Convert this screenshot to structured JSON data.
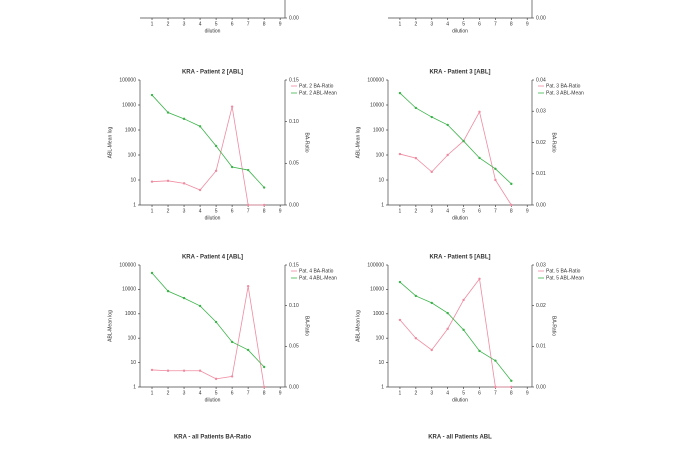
{
  "chart_data": [
    {
      "type": "line",
      "xlabel": "dilution",
      "xticks": [
        1,
        2,
        3,
        4,
        5,
        6,
        7,
        8,
        9
      ],
      "xlim": [
        0.25,
        9.3
      ],
      "y2ticks": [
        {
          "value": 0,
          "label": "0.00"
        }
      ],
      "y2lim": [
        0,
        0.15
      ]
    },
    {
      "type": "line",
      "xlabel": "dilution",
      "xticks": [
        1,
        2,
        3,
        4,
        5,
        6,
        7,
        8,
        9
      ],
      "xlim": [
        0.25,
        9.3
      ],
      "y2ticks": [
        {
          "value": 0,
          "label": "0.00"
        }
      ],
      "y2lim": [
        0,
        0.15
      ]
    },
    {
      "type": "line",
      "title": "KRA - Patient 2 [ABL]",
      "xlabel": "dilution",
      "ylabel": "ABL-Mean log",
      "y2label": "BA-Ratio",
      "log_scale": "y",
      "x": [
        1,
        2,
        3,
        4,
        5,
        6,
        7,
        8
      ],
      "xticks": [
        1,
        2,
        3,
        4,
        5,
        6,
        7,
        8,
        9
      ],
      "xlim": [
        0.25,
        9.3
      ],
      "ylim": [
        1,
        100000
      ],
      "yticks": [
        1,
        10,
        100,
        1000,
        10000,
        100000
      ],
      "y2lim": [
        0,
        0.15
      ],
      "y2ticks": [
        {
          "value": 0,
          "label": "0.00"
        },
        {
          "value": 0.05,
          "label": "0.05"
        },
        {
          "value": 0.1,
          "label": "0.10"
        },
        {
          "value": 0.15,
          "label": "0.15"
        }
      ],
      "series": [
        {
          "name": "Pat. 2 BA-Ratio",
          "color": "#f08aa0",
          "axis": "y2",
          "values": [
            0.028,
            0.029,
            0.026,
            0.018,
            0.041,
            0.118,
            0,
            0
          ]
        },
        {
          "name": "Pat. 2 ABL-Mean",
          "color": "#3cb44b",
          "values": [
            25000,
            5000,
            2800,
            1400,
            230,
            33,
            25,
            5
          ]
        }
      ]
    },
    {
      "type": "line",
      "title": "KRA - Patient 3 [ABL]",
      "xlabel": "dilution",
      "ylabel": "ABL-Mean log",
      "y2label": "BA-Ratio",
      "log_scale": "y",
      "x": [
        1,
        2,
        3,
        4,
        5,
        6,
        7,
        8
      ],
      "xticks": [
        1,
        2,
        3,
        4,
        5,
        6,
        7,
        8,
        9
      ],
      "xlim": [
        0.25,
        9.3
      ],
      "ylim": [
        1,
        100000
      ],
      "yticks": [
        1,
        10,
        100,
        1000,
        10000,
        100000
      ],
      "y2lim": [
        0,
        0.04
      ],
      "y2ticks": [
        {
          "value": 0,
          "label": "0.00"
        },
        {
          "value": 0.01,
          "label": "0.01"
        },
        {
          "value": 0.02,
          "label": "0.02"
        },
        {
          "value": 0.03,
          "label": "0.03"
        },
        {
          "value": 0.04,
          "label": "0.04"
        }
      ],
      "series": [
        {
          "name": "Pat. 3 BA-Ratio",
          "color": "#f08aa0",
          "axis": "y2",
          "values": [
            0.0163,
            0.015,
            0.0106,
            0.016,
            0.0205,
            0.0298,
            0.008,
            0
          ]
        },
        {
          "name": "Pat. 3 ABL-Mean",
          "color": "#3cb44b",
          "values": [
            30000,
            7600,
            3300,
            1600,
            360,
            76,
            28,
            7
          ]
        }
      ]
    },
    {
      "type": "line",
      "title": "KRA - Patient 4 [ABL]",
      "xlabel": "dilution",
      "ylabel": "ABL-Mean log",
      "y2label": "BA-Ratio",
      "log_scale": "y",
      "x": [
        1,
        2,
        3,
        4,
        5,
        6,
        7,
        8
      ],
      "xticks": [
        1,
        2,
        3,
        4,
        5,
        6,
        7,
        8,
        9
      ],
      "xlim": [
        0.25,
        9.3
      ],
      "ylim": [
        1,
        100000
      ],
      "yticks": [
        1,
        10,
        100,
        1000,
        10000,
        100000
      ],
      "y2lim": [
        0,
        0.15
      ],
      "y2ticks": [
        {
          "value": 0,
          "label": "0.00"
        },
        {
          "value": 0.05,
          "label": "0.05"
        },
        {
          "value": 0.1,
          "label": "0.10"
        },
        {
          "value": 0.15,
          "label": "0.15"
        }
      ],
      "series": [
        {
          "name": "Pat. 4 BA-Ratio",
          "color": "#f08aa0",
          "axis": "y2",
          "values": [
            0.021,
            0.02,
            0.02,
            0.02,
            0.01,
            0.013,
            0.124,
            0
          ]
        },
        {
          "name": "Pat. 4 ABL-Mean",
          "color": "#3cb44b",
          "values": [
            47000,
            8500,
            4400,
            2100,
            460,
            70,
            33,
            6.6
          ]
        }
      ]
    },
    {
      "type": "line",
      "title": "KRA - Patient 5 [ABL]",
      "xlabel": "dilution",
      "ylabel": "ABL-Mean log",
      "y2label": "BA-Ratio",
      "log_scale": "y",
      "x": [
        1,
        2,
        3,
        4,
        5,
        6,
        7,
        8
      ],
      "xticks": [
        1,
        2,
        3,
        4,
        5,
        6,
        7,
        8,
        9
      ],
      "xlim": [
        0.25,
        9.3
      ],
      "ylim": [
        1,
        100000
      ],
      "yticks": [
        1,
        10,
        100,
        1000,
        10000,
        100000
      ],
      "y2lim": [
        0,
        0.03
      ],
      "y2ticks": [
        {
          "value": 0,
          "label": "0.00"
        },
        {
          "value": 0.01,
          "label": "0.01"
        },
        {
          "value": 0.02,
          "label": "0.02"
        },
        {
          "value": 0.03,
          "label": "0.03"
        }
      ],
      "series": [
        {
          "name": "Pat. 5 BA-Ratio",
          "color": "#f08aa0",
          "axis": "y2",
          "values": [
            0.0165,
            0.012,
            0.0091,
            0.0143,
            0.0214,
            0.0266,
            0,
            0
          ]
        },
        {
          "name": "Pat. 5 ABL-Mean",
          "color": "#3cb44b",
          "values": [
            20000,
            5400,
            2800,
            1070,
            220,
            30,
            12,
            1.8
          ]
        }
      ]
    },
    {
      "type": "line",
      "title": "KRA - all Patients BA-Ratio"
    },
    {
      "type": "line",
      "title": "KRA - all Patients ABL"
    }
  ]
}
